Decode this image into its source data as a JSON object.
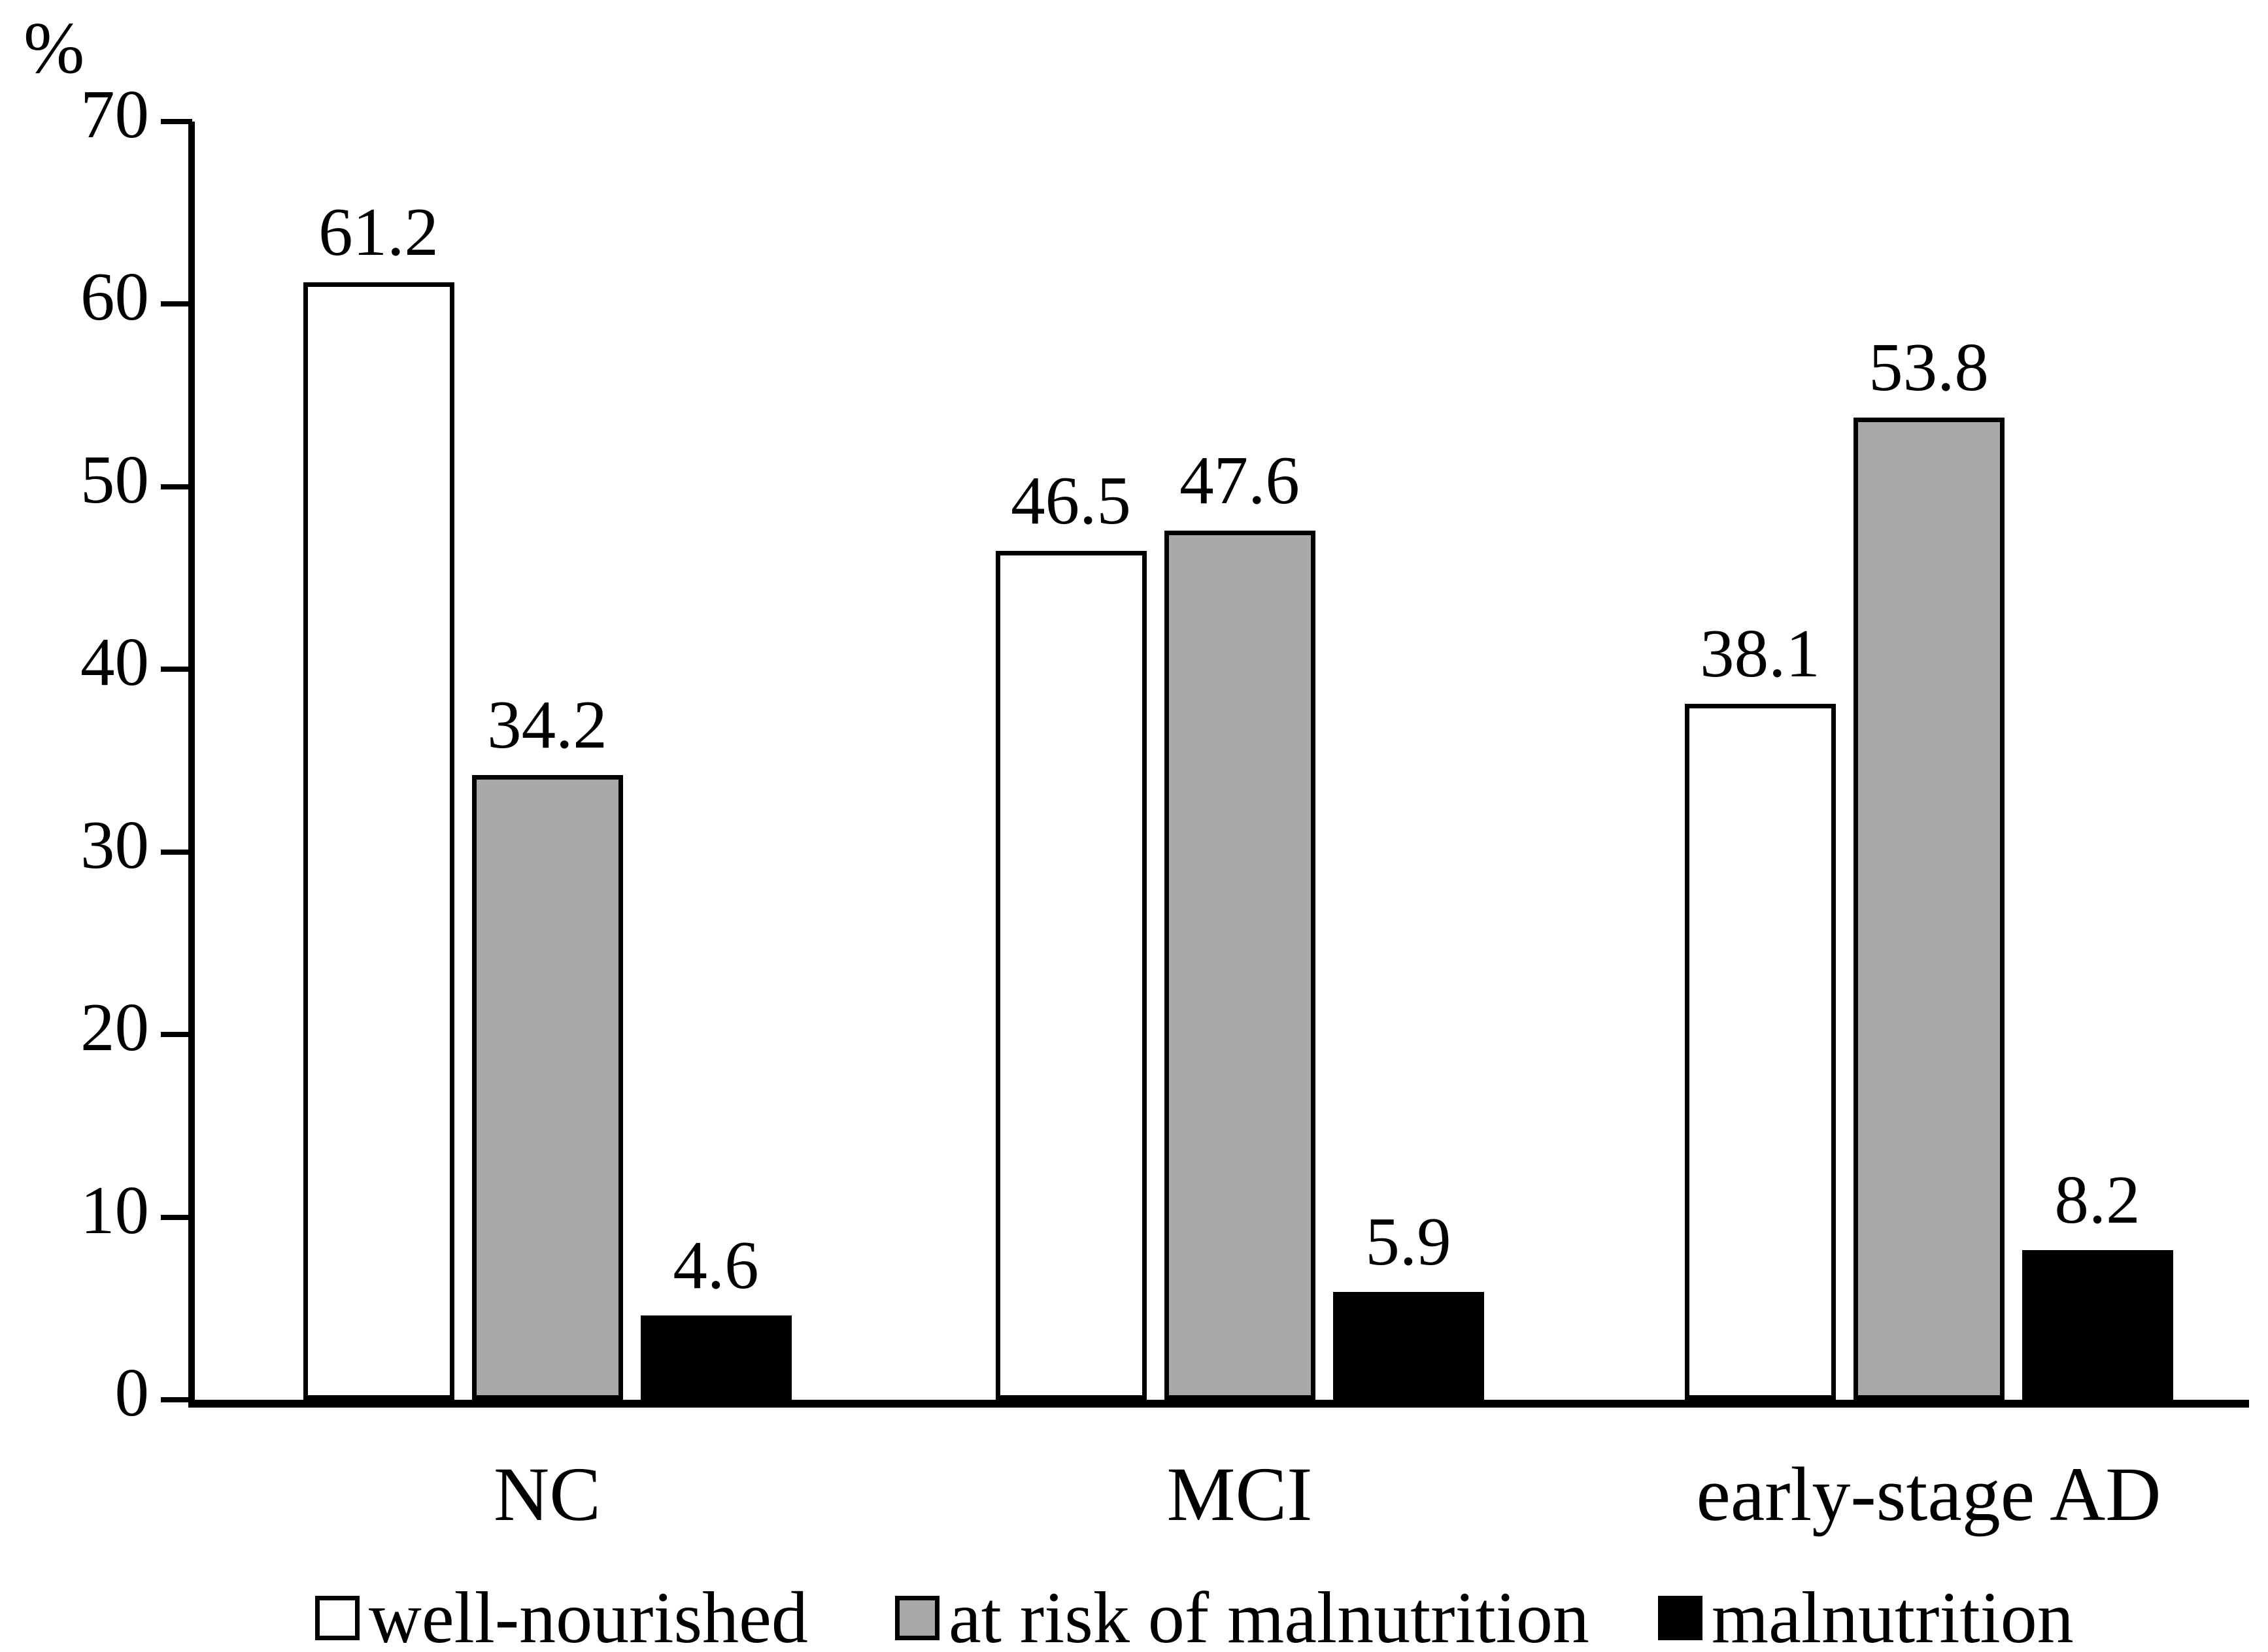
{
  "chart_data": {
    "type": "bar",
    "title": "",
    "ylabel": "%",
    "xlabel": "",
    "categories": [
      "NC",
      "MCI",
      "early-stage AD"
    ],
    "series": [
      {
        "name": "well-nourished",
        "color": "#ffffff",
        "values": [
          61.2,
          46.5,
          38.1
        ]
      },
      {
        "name": "at risk of malnutrition",
        "color": "#a9a9a9",
        "values": [
          34.2,
          47.6,
          53.8
        ]
      },
      {
        "name": "malnutrition",
        "color": "#000000",
        "values": [
          4.6,
          5.9,
          8.2
        ]
      }
    ],
    "ylim": [
      0,
      70
    ],
    "yticks": [
      0,
      10,
      20,
      30,
      40,
      50,
      60,
      70
    ],
    "grid": false,
    "legend_position": "bottom",
    "bar_border_color": "#000000",
    "axis_color": "#000000",
    "background_color": "#ffffff"
  }
}
